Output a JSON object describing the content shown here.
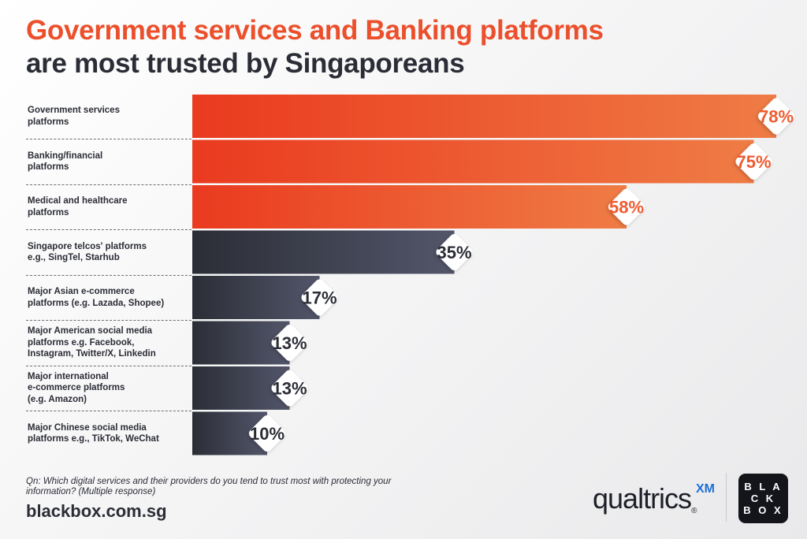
{
  "header": {
    "title_line1": "Government services and Banking platforms",
    "title_line2": "are most trusted by Singaporeans"
  },
  "chart_data": {
    "type": "bar",
    "orientation": "horizontal",
    "categories": [
      [
        "Government services",
        "platforms"
      ],
      [
        "Banking/financial",
        "platforms"
      ],
      [
        "Medical and healthcare",
        "platforms"
      ],
      [
        "Singapore telcos' platforms",
        "e.g., SingTel, Starhub"
      ],
      [
        "Major Asian e-commerce",
        "platforms (e.g. Lazada, Shopee)"
      ],
      [
        "Major American social media",
        "platforms e.g. Facebook,",
        "Instagram, Twitter/X, Linkedin"
      ],
      [
        "Major international",
        "e-commerce platforms",
        "(e.g. Amazon)"
      ],
      [
        "Major Chinese social media",
        "platforms e.g., TikTok, WeChat"
      ]
    ],
    "values": [
      78,
      75,
      58,
      35,
      17,
      13,
      13,
      10
    ],
    "data_labels": [
      "78%",
      "75%",
      "58%",
      "35%",
      "17%",
      "13%",
      "13%",
      "10%"
    ],
    "xlim": [
      0,
      100
    ],
    "grid": false,
    "legend": "none",
    "colors": {
      "highlight_start": "#ea3a1f",
      "highlight_end": "#ef7c45",
      "highlight_label": "#ee5b30",
      "other_start": "#2b2d36",
      "other_end": "#53566a",
      "other_label": "#2b2d36"
    }
  },
  "footer": {
    "question": "Qn: Which digital services and their providers do you tend to trust most with protecting your information? (Multiple response)",
    "website": "blackbox.com.sg"
  },
  "logos": {
    "qualtrics_word": "qualtrics",
    "qualtrics_mark": "XM",
    "blackbox_lines": [
      "B L A",
      "C K",
      "B O X"
    ]
  }
}
